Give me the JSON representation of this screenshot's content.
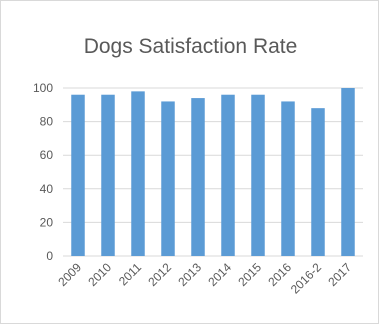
{
  "chart_data": {
    "type": "bar",
    "title": "Dogs Satisfaction Rate",
    "xlabel": "",
    "ylabel": "",
    "categories": [
      "2009",
      "2010",
      "2011",
      "2012",
      "2013",
      "2014",
      "2015",
      "2016",
      "2016-2",
      "2017"
    ],
    "values": [
      96,
      96,
      98,
      92,
      94,
      96,
      96,
      92,
      88,
      100
    ],
    "ylim": [
      0,
      100
    ],
    "yticks": [
      0,
      20,
      40,
      60,
      80,
      100
    ],
    "grid": true,
    "legend": "none",
    "bar_color": "#5b9bd5",
    "grid_color": "#d9d9d9"
  }
}
